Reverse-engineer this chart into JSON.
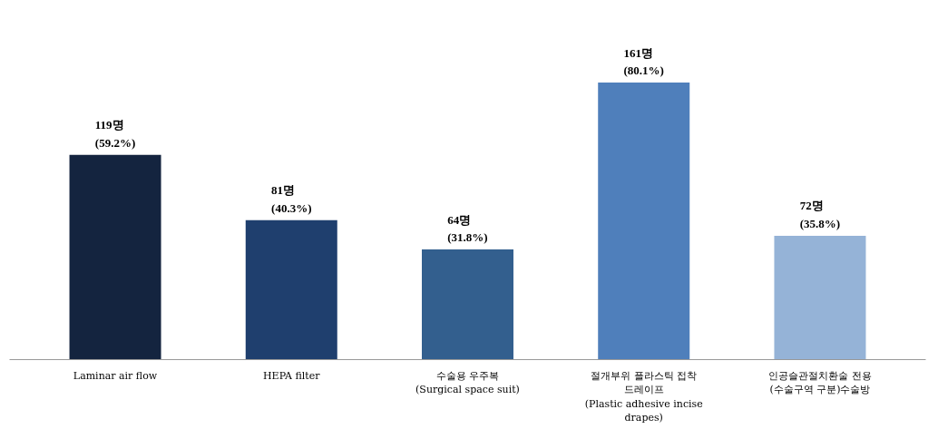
{
  "chart_data": {
    "type": "bar",
    "categories": [
      "Laminar air flow",
      "HEPA filter",
      "수술용 우주복\n(Surgical space suit)",
      "절개부위 플라스틱 접착\n드레이프\n(Plastic adhesive incise\ndrapes)",
      "인공슬관절치환술 전용\n(수술구역 구분)수술방"
    ],
    "values": [
      119,
      81,
      64,
      161,
      72
    ],
    "colors": [
      "#14243f",
      "#1f3f6e",
      "#335f8e",
      "#4f7fbb",
      "#95b3d7"
    ],
    "value_labels": [
      "119명\n(59.2%)",
      "81명\n(40.3%)",
      "64명\n(31.8%)",
      "161명\n(80.1%)",
      "72명\n(35.8%)"
    ]
  }
}
